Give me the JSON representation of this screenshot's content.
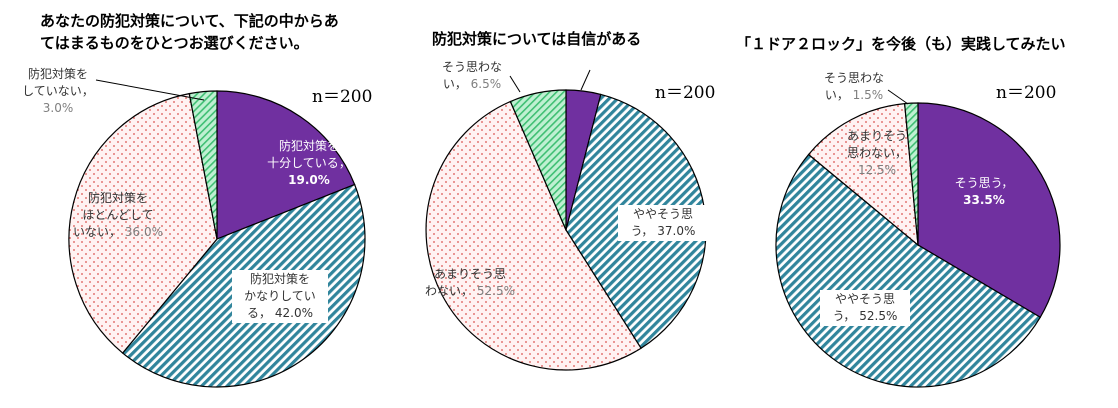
{
  "sample_label": "n＝200",
  "colors": {
    "purple": "#7030a0",
    "teal": "#31859c",
    "dots": "#d9534f",
    "green": "#8fdcb0",
    "outline": "#000000"
  },
  "chart_data": [
    {
      "type": "pie",
      "title_lines": [
        "あなたの防犯対策について、下記の中からあ",
        "てはまるものをひとつお選びください。"
      ],
      "slices": [
        {
          "name": "防犯対策を\n十分している",
          "sep": "，",
          "pct_text": "19.0%",
          "value": 19.0,
          "fill": "purple"
        },
        {
          "name": "防犯対策を\nかなりしてい\nる",
          "sep": "，",
          "pct_text": "42.0%",
          "value": 42.0,
          "fill": "teal"
        },
        {
          "name": "防犯対策を\nほとんどして\nいない",
          "sep": "，",
          "pct_text": "36.0%",
          "value": 36.0,
          "fill": "dots"
        },
        {
          "name": "防犯対策を\nしていない",
          "sep": "，",
          "pct_text": "3.0%",
          "value": 3.0,
          "fill": "green"
        }
      ]
    },
    {
      "type": "pie",
      "title_lines": [
        "防犯対策については自信がある"
      ],
      "slices": [
        {
          "name": "",
          "sep": "",
          "pct_text": "",
          "value": 4.0,
          "fill": "purple"
        },
        {
          "name": "ややそう思\nう",
          "sep": "，",
          "pct_text": "37.0%",
          "value": 37.0,
          "fill": "teal"
        },
        {
          "name": "あまりそう思\nわない",
          "sep": "，",
          "pct_text": "52.5%",
          "value": 52.5,
          "fill": "dots"
        },
        {
          "name": "そう思わな\nい",
          "sep": "，",
          "pct_text": "6.5%",
          "value": 6.5,
          "fill": "green"
        }
      ]
    },
    {
      "type": "pie",
      "title_lines": [
        "「１ドア２ロック」を今後（も）実践してみたい"
      ],
      "slices": [
        {
          "name": "そう思う",
          "sep": "，",
          "pct_text": "33.5%",
          "value": 33.5,
          "fill": "purple"
        },
        {
          "name": "ややそう思\nう",
          "sep": "，",
          "pct_text": "52.5%",
          "value": 52.5,
          "fill": "teal"
        },
        {
          "name": "あまりそう\n思わない",
          "sep": "，",
          "pct_text": "12.5%",
          "value": 12.5,
          "fill": "dots"
        },
        {
          "name": "そう思わな\nい",
          "sep": "，",
          "pct_text": "1.5%",
          "value": 1.5,
          "fill": "green"
        }
      ]
    }
  ]
}
